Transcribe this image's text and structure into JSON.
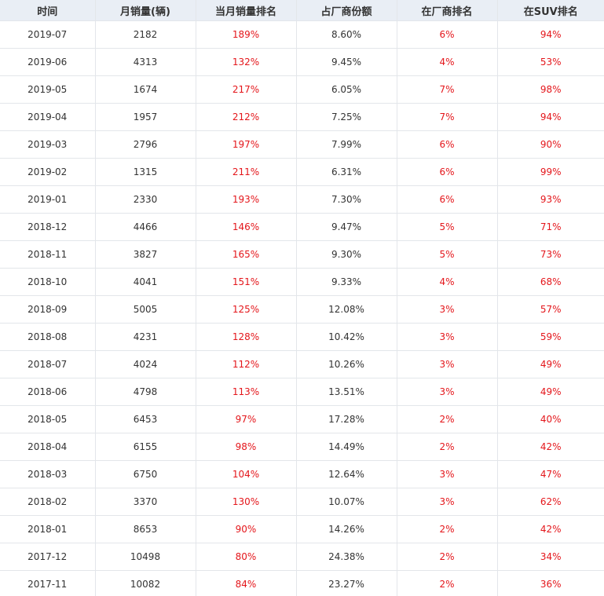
{
  "table": {
    "headers": [
      "时间",
      "月销量(辆)",
      "当月销量排名",
      "占厂商份额",
      "在厂商排名",
      "在SUV排名"
    ],
    "rows": [
      [
        "2019-07",
        "2182",
        "189%",
        "8.60%",
        "6%",
        "94%"
      ],
      [
        "2019-06",
        "4313",
        "132%",
        "9.45%",
        "4%",
        "53%"
      ],
      [
        "2019-05",
        "1674",
        "217%",
        "6.05%",
        "7%",
        "98%"
      ],
      [
        "2019-04",
        "1957",
        "212%",
        "7.25%",
        "7%",
        "94%"
      ],
      [
        "2019-03",
        "2796",
        "197%",
        "7.99%",
        "6%",
        "90%"
      ],
      [
        "2019-02",
        "1315",
        "211%",
        "6.31%",
        "6%",
        "99%"
      ],
      [
        "2019-01",
        "2330",
        "193%",
        "7.30%",
        "6%",
        "93%"
      ],
      [
        "2018-12",
        "4466",
        "146%",
        "9.47%",
        "5%",
        "71%"
      ],
      [
        "2018-11",
        "3827",
        "165%",
        "9.30%",
        "5%",
        "73%"
      ],
      [
        "2018-10",
        "4041",
        "151%",
        "9.33%",
        "4%",
        "68%"
      ],
      [
        "2018-09",
        "5005",
        "125%",
        "12.08%",
        "3%",
        "57%"
      ],
      [
        "2018-08",
        "4231",
        "128%",
        "10.42%",
        "3%",
        "59%"
      ],
      [
        "2018-07",
        "4024",
        "112%",
        "10.26%",
        "3%",
        "49%"
      ],
      [
        "2018-06",
        "4798",
        "113%",
        "13.51%",
        "3%",
        "49%"
      ],
      [
        "2018-05",
        "6453",
        "97%",
        "17.28%",
        "2%",
        "40%"
      ],
      [
        "2018-04",
        "6155",
        "98%",
        "14.49%",
        "2%",
        "42%"
      ],
      [
        "2018-03",
        "6750",
        "104%",
        "12.64%",
        "3%",
        "47%"
      ],
      [
        "2018-02",
        "3370",
        "130%",
        "10.07%",
        "3%",
        "62%"
      ],
      [
        "2018-01",
        "8653",
        "90%",
        "14.26%",
        "2%",
        "42%"
      ],
      [
        "2017-12",
        "10498",
        "80%",
        "24.38%",
        "2%",
        "34%"
      ],
      [
        "2017-11",
        "10082",
        "84%",
        "23.27%",
        "2%",
        "36%"
      ]
    ]
  }
}
